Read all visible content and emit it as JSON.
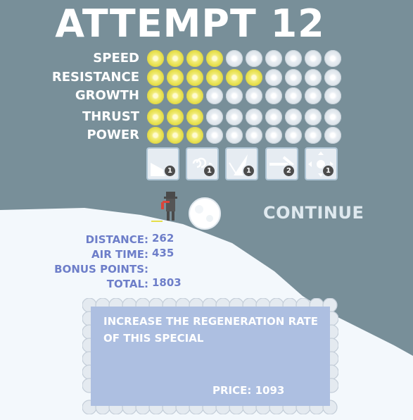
{
  "title": "ATTEMPT 12",
  "stats": [
    {
      "label": "SPEED",
      "level": 4,
      "max": 10
    },
    {
      "label": "RESISTANCE",
      "level": 6,
      "max": 10
    },
    {
      "label": "GROWTH",
      "level": 3,
      "max": 10
    },
    {
      "label": "THRUST",
      "level": 3,
      "max": 10
    },
    {
      "label": "POWER",
      "level": 3,
      "max": 10
    }
  ],
  "specials": [
    {
      "icon": "ramp-icon",
      "level": "1"
    },
    {
      "icon": "swirl-icon",
      "level": "1"
    },
    {
      "icon": "burst-icon",
      "level": "1"
    },
    {
      "icon": "arrow-right-icon",
      "level": "2"
    },
    {
      "icon": "expand-arrows-icon",
      "level": "1"
    }
  ],
  "continue_label": "CONTINUE",
  "results": {
    "distance_label": "DISTANCE:",
    "distance_value": "262",
    "airtime_label": "AIR TIME:",
    "airtime_value": "435",
    "bonus_label": "BONUS POINTS:",
    "bonus_value": "",
    "total_label": "TOTAL:",
    "total_value": "1803"
  },
  "info_panel": {
    "description": "INCREASE THE REGENERATION RATE OF THIS SPECIAL",
    "price_label": "PRICE:",
    "price_value": "1093"
  },
  "colors": {
    "sky": "#788f99",
    "snow": "#f3f8fc",
    "filled_flake": "#e6df4a",
    "empty_flake": "#dde4ea",
    "result_text": "#6d7ec9",
    "panel": "#adbfe1"
  }
}
